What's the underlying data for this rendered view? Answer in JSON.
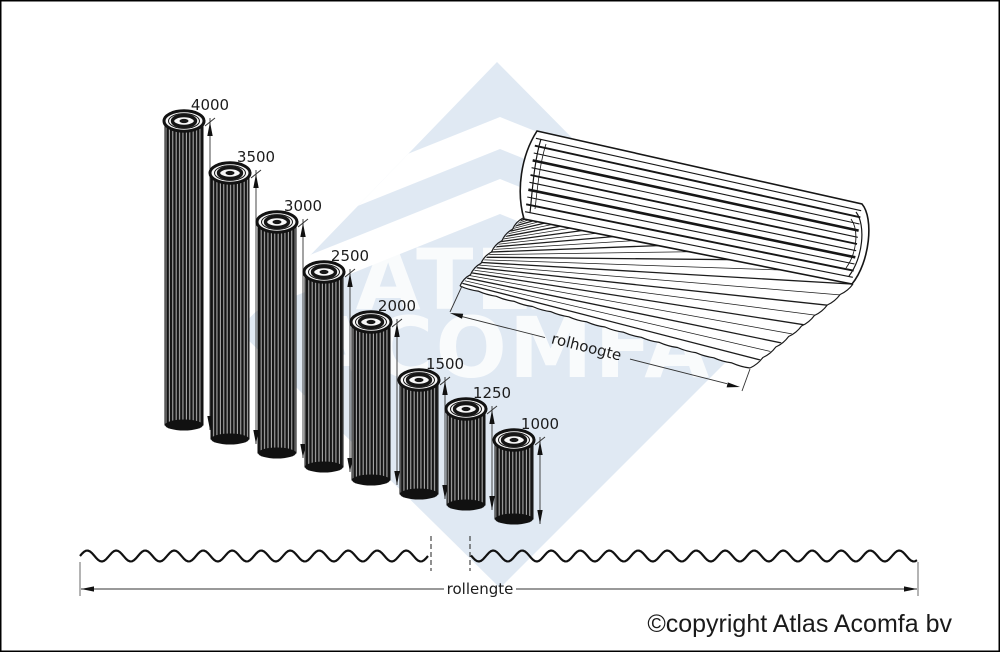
{
  "page": {
    "background": "#ffffff",
    "border_color": "#000000"
  },
  "watermark": {
    "line1": "ATLAS",
    "line2": "ACOMFA",
    "blue": "#e0e9f3",
    "text_color": "#ffffff"
  },
  "dimensions": {
    "roll_height_label": "rolhoogte",
    "roll_length_label": "rollengte"
  },
  "rolls": [
    {
      "label": "4000",
      "value_mm": 4000
    },
    {
      "label": "3500",
      "value_mm": 3500
    },
    {
      "label": "3000",
      "value_mm": 3000
    },
    {
      "label": "2500",
      "value_mm": 2500
    },
    {
      "label": "2000",
      "value_mm": 2000
    },
    {
      "label": "1500",
      "value_mm": 1500
    },
    {
      "label": "1250",
      "value_mm": 1250
    },
    {
      "label": "1000",
      "value_mm": 1000
    }
  ],
  "footer": {
    "copyright": "©copyright Atlas Acomfa bv"
  }
}
